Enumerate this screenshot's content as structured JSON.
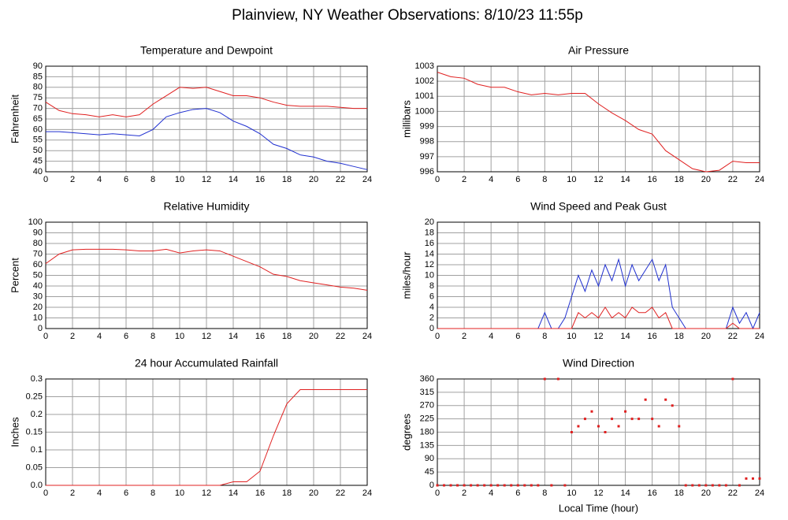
{
  "title": "Plainview, NY Weather Observations: 8/10/23 11:55p",
  "chart_data": [
    {
      "type": "line",
      "title": "Temperature and Dewpoint",
      "ylabel": "Fahrenheit",
      "x": [
        0,
        1,
        2,
        3,
        4,
        5,
        6,
        7,
        8,
        9,
        10,
        11,
        12,
        13,
        14,
        15,
        16,
        17,
        18,
        19,
        20,
        21,
        22,
        23,
        24
      ],
      "series": [
        {
          "color": "#e02020",
          "values": [
            73,
            69,
            67.5,
            67,
            66,
            67,
            66,
            67,
            72,
            76,
            80,
            79.5,
            80,
            78,
            76,
            76,
            75,
            73,
            71.5,
            71,
            71,
            71,
            70.5,
            70,
            70
          ]
        },
        {
          "color": "#2030d0",
          "values": [
            59,
            59,
            58.5,
            58,
            57.5,
            58,
            57.5,
            57,
            60,
            66,
            68,
            69.5,
            70,
            68,
            64,
            61.5,
            58,
            53,
            51,
            48,
            47,
            45,
            44,
            42.5,
            41
          ]
        }
      ],
      "xlim": [
        0,
        24
      ],
      "xticks": [
        0,
        2,
        4,
        6,
        8,
        10,
        12,
        14,
        16,
        18,
        20,
        22,
        24
      ],
      "ylim": [
        40,
        90
      ],
      "yticks": [
        40,
        45,
        50,
        55,
        60,
        65,
        70,
        75,
        80,
        85,
        90
      ],
      "grid": true
    },
    {
      "type": "line",
      "title": "Air Pressure",
      "ylabel": "millibars",
      "x": [
        0,
        1,
        2,
        3,
        4,
        5,
        6,
        7,
        8,
        9,
        10,
        11,
        12,
        13,
        14,
        15,
        16,
        17,
        18,
        19,
        20,
        21,
        22,
        23,
        24
      ],
      "series": [
        {
          "color": "#e02020",
          "values": [
            1002.6,
            1002.3,
            1002.2,
            1001.8,
            1001.6,
            1001.6,
            1001.3,
            1001.1,
            1001.2,
            1001.1,
            1001.2,
            1001.2,
            1000.5,
            999.9,
            999.4,
            998.8,
            998.5,
            997.4,
            996.8,
            996.2,
            996.0,
            996.1,
            996.7,
            996.6,
            996.6
          ]
        }
      ],
      "xlim": [
        0,
        24
      ],
      "xticks": [
        0,
        2,
        4,
        6,
        8,
        10,
        12,
        14,
        16,
        18,
        20,
        22,
        24
      ],
      "ylim": [
        996,
        1003
      ],
      "yticks": [
        996,
        997,
        998,
        999,
        1000,
        1001,
        1002,
        1003
      ],
      "grid": true
    },
    {
      "type": "line",
      "title": "Relative Humidity",
      "ylabel": "Percent",
      "x": [
        0,
        1,
        2,
        3,
        4,
        5,
        6,
        7,
        8,
        9,
        10,
        11,
        12,
        13,
        14,
        15,
        16,
        17,
        18,
        19,
        20,
        21,
        22,
        23,
        24
      ],
      "series": [
        {
          "color": "#e02020",
          "values": [
            61,
            70,
            74,
            74.5,
            74.5,
            74.5,
            74,
            73,
            73,
            74.5,
            71,
            73,
            74,
            73,
            68,
            63,
            58,
            51,
            49,
            45,
            43,
            41,
            39,
            38,
            36
          ]
        }
      ],
      "xlim": [
        0,
        24
      ],
      "xticks": [
        0,
        2,
        4,
        6,
        8,
        10,
        12,
        14,
        16,
        18,
        20,
        22,
        24
      ],
      "ylim": [
        0,
        100
      ],
      "yticks": [
        0,
        10,
        20,
        30,
        40,
        50,
        60,
        70,
        80,
        90,
        100
      ],
      "grid": true
    },
    {
      "type": "line",
      "title": "Wind Speed and Peak Gust",
      "ylabel": "miles/hour",
      "x": [
        0,
        0.5,
        1,
        1.5,
        2,
        2.5,
        3,
        3.5,
        4,
        4.5,
        5,
        5.5,
        6,
        6.5,
        7,
        7.5,
        8,
        8.5,
        9,
        9.5,
        10,
        10.5,
        11,
        11.5,
        12,
        12.5,
        13,
        13.5,
        14,
        14.5,
        15,
        15.5,
        16,
        16.5,
        17,
        17.5,
        18,
        18.5,
        19,
        19.5,
        20,
        20.5,
        21,
        21.5,
        22,
        22.5,
        23,
        23.5,
        24
      ],
      "series": [
        {
          "color": "#2030d0",
          "values": [
            0,
            0,
            0,
            0,
            0,
            0,
            0,
            0,
            0,
            0,
            0,
            0,
            0,
            0,
            0,
            0,
            3,
            0,
            0,
            2,
            6,
            10,
            7,
            11,
            8,
            12,
            9,
            13,
            8,
            12,
            9,
            11,
            13,
            9,
            12,
            4,
            2,
            0,
            0,
            0,
            0,
            0,
            0,
            0,
            4,
            1,
            3,
            0,
            3
          ]
        },
        {
          "color": "#e02020",
          "values": [
            0,
            0,
            0,
            0,
            0,
            0,
            0,
            0,
            0,
            0,
            0,
            0,
            0,
            0,
            0,
            0,
            0,
            0,
            0,
            0,
            0,
            3,
            2,
            3,
            2,
            4,
            2,
            3,
            2,
            4,
            3,
            3,
            4,
            2,
            3,
            0,
            0,
            0,
            0,
            0,
            0,
            0,
            0,
            0,
            1,
            0,
            0,
            0,
            0
          ]
        }
      ],
      "xlim": [
        0,
        24
      ],
      "xticks": [
        0,
        2,
        4,
        6,
        8,
        10,
        12,
        14,
        16,
        18,
        20,
        22,
        24
      ],
      "ylim": [
        0,
        20
      ],
      "yticks": [
        0,
        2,
        4,
        6,
        8,
        10,
        12,
        14,
        16,
        18,
        20
      ],
      "grid": true
    },
    {
      "type": "line",
      "title": "24 hour Accumulated Rainfall",
      "ylabel": "Inches",
      "x": [
        0,
        1,
        2,
        3,
        4,
        5,
        6,
        7,
        8,
        9,
        10,
        11,
        12,
        13,
        14,
        15,
        16,
        17,
        18,
        19,
        20,
        21,
        22,
        23,
        24
      ],
      "series": [
        {
          "color": "#e02020",
          "values": [
            0,
            0,
            0,
            0,
            0,
            0,
            0,
            0,
            0,
            0,
            0,
            0,
            0,
            0,
            0.01,
            0.01,
            0.04,
            0.14,
            0.23,
            0.27,
            0.27,
            0.27,
            0.27,
            0.27,
            0.27
          ]
        }
      ],
      "xlim": [
        0,
        24
      ],
      "xticks": [
        0,
        2,
        4,
        6,
        8,
        10,
        12,
        14,
        16,
        18,
        20,
        22,
        24
      ],
      "ylim": [
        0,
        0.3
      ],
      "yticks": [
        {
          "value": 0,
          "label": "0.0"
        },
        0.05,
        0.1,
        0.15,
        0.2,
        0.25,
        0.3
      ],
      "grid": true
    },
    {
      "type": "scatter",
      "title": "Wind Direction",
      "ylabel": "degrees",
      "xlabel": "Local Time (hour)",
      "x": [
        0,
        0.5,
        1,
        1.5,
        2,
        2.5,
        3,
        3.5,
        4,
        4.5,
        5,
        5.5,
        6,
        6.5,
        7,
        7.5,
        8,
        8.5,
        9,
        9.5,
        10,
        10.5,
        11,
        11.5,
        12,
        12.5,
        13,
        13.5,
        14,
        14.5,
        15,
        15.5,
        16,
        16.5,
        17,
        17.5,
        18,
        18.5,
        19,
        19.5,
        20,
        20.5,
        21,
        21.5,
        22,
        22.5,
        23,
        23.5,
        24
      ],
      "series": [
        {
          "color": "#e02020",
          "values": [
            0,
            0,
            0,
            0,
            0,
            0,
            0,
            0,
            0,
            0,
            0,
            0,
            0,
            0,
            0,
            0,
            360,
            0,
            360,
            0,
            180,
            200,
            225,
            250,
            200,
            180,
            225,
            200,
            250,
            225,
            225,
            290,
            225,
            200,
            290,
            270,
            200,
            0,
            0,
            0,
            0,
            0,
            0,
            0,
            360,
            0,
            23,
            23,
            23
          ]
        }
      ],
      "xlim": [
        0,
        24
      ],
      "xticks": [
        0,
        2,
        4,
        6,
        8,
        10,
        12,
        14,
        16,
        18,
        20,
        22,
        24
      ],
      "ylim": [
        0,
        360
      ],
      "yticks": [
        0,
        45,
        90,
        135,
        180,
        225,
        270,
        315,
        360
      ],
      "grid": true
    }
  ]
}
